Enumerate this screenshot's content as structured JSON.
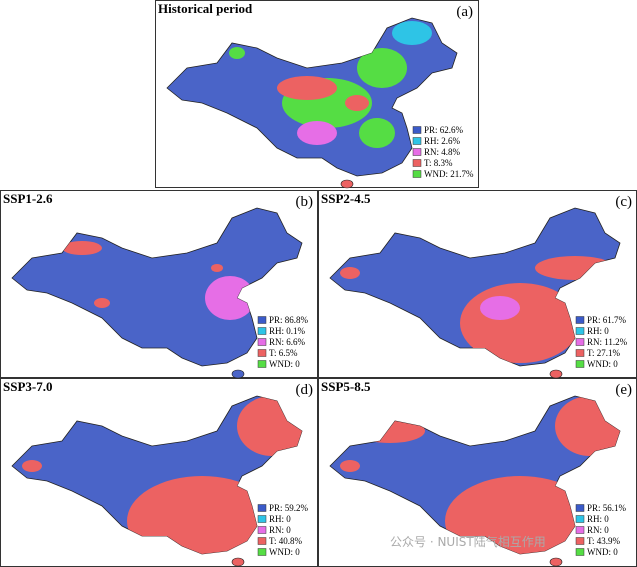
{
  "panels": [
    {
      "title": "Historical period",
      "letter": "(a)",
      "legend": [
        {
          "label": "PR: 62.6%",
          "color": "#3b5bc9"
        },
        {
          "label": "RH: 2.6%",
          "color": "#2ec4e6"
        },
        {
          "label": "RN: 4.8%",
          "color": "#e66ee6"
        },
        {
          "label": "T: 8.3%",
          "color": "#ec6262"
        },
        {
          "label": "WND: 21.7%",
          "color": "#55dd44"
        }
      ]
    },
    {
      "title": "SSP1-2.6",
      "letter": "(b)",
      "legend": [
        {
          "label": "PR: 86.8%",
          "color": "#3b5bc9"
        },
        {
          "label": "RH: 0.1%",
          "color": "#2ec4e6"
        },
        {
          "label": "RN: 6.6%",
          "color": "#e66ee6"
        },
        {
          "label": "T: 6.5%",
          "color": "#ec6262"
        },
        {
          "label": "WND: 0",
          "color": "#55dd44"
        }
      ]
    },
    {
      "title": "SSP2-4.5",
      "letter": "(c)",
      "legend": [
        {
          "label": "PR: 61.7%",
          "color": "#3b5bc9"
        },
        {
          "label": "RH: 0",
          "color": "#2ec4e6"
        },
        {
          "label": "RN: 11.2%",
          "color": "#e66ee6"
        },
        {
          "label": "T: 27.1%",
          "color": "#ec6262"
        },
        {
          "label": "WND: 0",
          "color": "#55dd44"
        }
      ]
    },
    {
      "title": "SSP3-7.0",
      "letter": "(d)",
      "legend": [
        {
          "label": "PR: 59.2%",
          "color": "#3b5bc9"
        },
        {
          "label": "RH: 0",
          "color": "#2ec4e6"
        },
        {
          "label": "RN: 0",
          "color": "#e66ee6"
        },
        {
          "label": "T: 40.8%",
          "color": "#ec6262"
        },
        {
          "label": "WND: 0",
          "color": "#55dd44"
        }
      ]
    },
    {
      "title": "SSP5-8.5",
      "letter": "(e)",
      "legend": [
        {
          "label": "PR: 56.1%",
          "color": "#3b5bc9"
        },
        {
          "label": "RH: 0",
          "color": "#2ec4e6"
        },
        {
          "label": "RN: 0",
          "color": "#e66ee6"
        },
        {
          "label": "T: 43.9%",
          "color": "#ec6262"
        },
        {
          "label": "WND: 0",
          "color": "#55dd44"
        }
      ]
    }
  ],
  "watermark": "公众号 · NUIST陆气相互作用"
}
